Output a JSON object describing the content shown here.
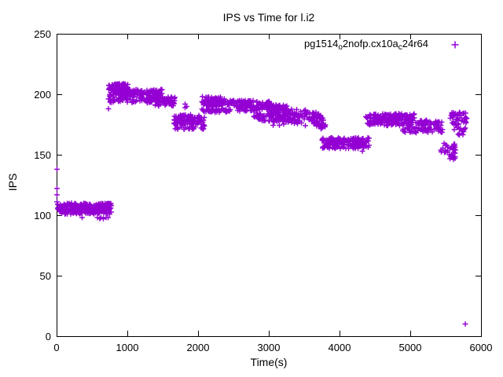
{
  "window": {
    "background": "#ffffff",
    "text_color": "#000000",
    "axis_color": "#000000"
  },
  "chart_data": {
    "type": "scatter",
    "title": "IPS vs Time for l.i2",
    "xlabel": "Time(s)",
    "ylabel": "IPS",
    "xlim": [
      0,
      6000
    ],
    "ylim": [
      0,
      250
    ],
    "xticks": [
      0,
      1000,
      2000,
      3000,
      4000,
      5000,
      6000
    ],
    "yticks": [
      0,
      50,
      100,
      150,
      200,
      250
    ],
    "grid": false,
    "border_box": true,
    "legend_position": "top-right-inside",
    "marker": "plus",
    "series": [
      {
        "name": "pg1514_o2nofp.cx10a_c24r64",
        "name_segments": [
          {
            "text": "pg1514",
            "sub": false
          },
          {
            "text": "o",
            "sub": true
          },
          {
            "text": "2nofp.cx10a",
            "sub": false
          },
          {
            "text": "c",
            "sub": true
          },
          {
            "text": "24r64",
            "sub": false
          }
        ],
        "color": "#9400d3",
        "cluster_fields": [
          "t_min",
          "t_max",
          "ips_min",
          "ips_max",
          "count"
        ],
        "clusters": [
          [
            10,
            780,
            101,
            110,
            280
          ],
          [
            733,
            1011,
            203,
            209,
            90
          ],
          [
            733,
            1500,
            199,
            204,
            120
          ],
          [
            733,
            1450,
            193,
            199,
            90
          ],
          [
            1390,
            1680,
            190,
            198,
            60
          ],
          [
            1650,
            2100,
            171,
            183,
            130
          ],
          [
            2055,
            2400,
            191,
            198,
            70
          ],
          [
            2055,
            2460,
            185,
            188,
            45
          ],
          [
            2070,
            2880,
            190,
            195,
            120
          ],
          [
            2890,
            3100,
            190,
            194,
            20
          ],
          [
            2530,
            3255,
            186,
            191,
            110
          ],
          [
            2790,
            3680,
            178,
            185,
            150
          ],
          [
            3230,
            3540,
            184,
            188,
            12
          ],
          [
            3000,
            3700,
            174,
            178,
            25
          ],
          [
            3640,
            3800,
            172,
            184,
            35
          ],
          [
            3650,
            3790,
            171,
            174,
            8
          ],
          [
            3755,
            4420,
            155,
            164,
            170
          ],
          [
            4370,
            5060,
            179,
            184,
            100
          ],
          [
            4390,
            5290,
            174,
            179,
            120
          ],
          [
            5290,
            5450,
            174,
            178,
            15
          ],
          [
            4890,
            5480,
            168,
            173,
            60
          ],
          [
            5420,
            5640,
            151,
            160,
            30
          ],
          [
            5540,
            5640,
            146,
            151,
            12
          ],
          [
            5560,
            5800,
            176,
            185,
            40
          ],
          [
            5620,
            5800,
            166,
            174,
            14
          ],
          [
            5570,
            5700,
            174,
            176,
            6
          ]
        ],
        "outliers": [
          [
            5,
            138
          ],
          [
            6,
            122
          ],
          [
            8,
            117
          ],
          [
            5,
            111
          ],
          [
            360,
            98
          ],
          [
            580,
            98
          ],
          [
            610,
            97
          ],
          [
            630,
            98
          ],
          [
            660,
            97
          ],
          [
            700,
            98
          ],
          [
            730,
            98
          ],
          [
            733,
            188
          ],
          [
            1815,
            192
          ],
          [
            1815,
            189
          ],
          [
            1840,
            190
          ],
          [
            4320,
            153
          ],
          [
            5780,
            10
          ]
        ]
      }
    ]
  }
}
